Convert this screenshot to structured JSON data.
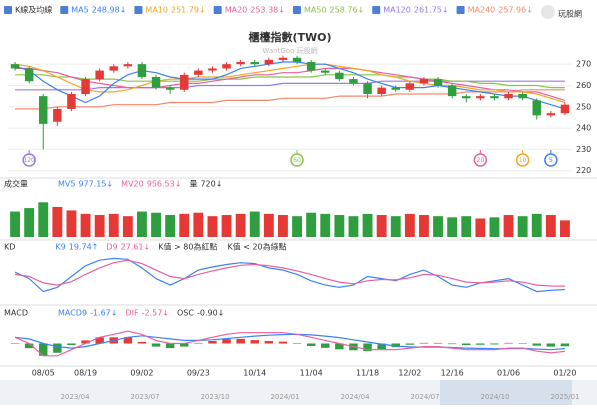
{
  "logo": "玩股網",
  "navigator": {
    "labels": [
      "2023/04",
      "2023/07",
      "2023/10",
      "2024/01",
      "2024/04",
      "2024/07",
      "2024/10",
      "2025/01"
    ]
  },
  "chart_data": [
    {
      "type": "candlestick",
      "title": "櫃檯指數(TWO)",
      "watermark": "WantGoo 玩股網",
      "legend_title": "K線及均線",
      "categories": [
        null,
        null,
        "08/05",
        null,
        null,
        "08/19",
        null,
        null,
        null,
        "09/02",
        null,
        null,
        null,
        "09/23",
        null,
        null,
        null,
        "10/14",
        null,
        null,
        null,
        "11/04",
        null,
        null,
        null,
        "11/18",
        null,
        null,
        "12/02",
        null,
        null,
        "12/16",
        null,
        null,
        null,
        "01/06",
        null,
        null,
        null,
        "01/20"
      ],
      "open": [
        270,
        268,
        255,
        243,
        249,
        256,
        263,
        267,
        269,
        270,
        264,
        259,
        258,
        265,
        267,
        268,
        270,
        271,
        270,
        272,
        273,
        271,
        267,
        266,
        263,
        261,
        256,
        259,
        258,
        261,
        263,
        260,
        255,
        254,
        255,
        254,
        256,
        253,
        246,
        247
      ],
      "high": [
        271,
        269,
        256,
        250,
        257,
        264,
        268,
        270,
        271,
        271,
        265,
        260,
        266,
        268,
        269,
        271,
        272,
        272,
        273,
        274,
        274,
        272,
        268,
        267,
        264,
        262,
        260,
        260,
        262,
        264,
        264,
        261,
        256,
        256,
        256,
        257,
        257,
        254,
        248,
        252
      ],
      "low": [
        267,
        261,
        230,
        241,
        248,
        255,
        262,
        266,
        268,
        263,
        258,
        256,
        257,
        264,
        266,
        267,
        269,
        269,
        269,
        271,
        270,
        266,
        265,
        262,
        260,
        254,
        255,
        257,
        257,
        260,
        259,
        254,
        252,
        253,
        253,
        253,
        253,
        244,
        245,
        246
      ],
      "close": [
        268,
        262,
        242,
        249,
        256,
        263,
        267,
        269,
        270,
        264,
        259,
        258,
        265,
        267,
        268,
        270,
        271,
        270,
        272,
        273,
        271,
        267,
        266,
        263,
        261,
        256,
        259,
        258,
        261,
        263,
        260,
        255,
        254,
        255,
        254,
        256,
        254,
        246,
        247,
        251
      ],
      "up_color": "#e53935",
      "down_color": "#2e9e3e",
      "series": [
        {
          "name": "MA5",
          "color": "#3b82f6",
          "last": 248.98,
          "trend": "↓",
          "values": [
            269,
            267,
            262,
            258,
            255,
            252,
            255,
            261,
            265,
            267,
            266,
            264,
            263,
            263,
            263,
            265,
            268,
            269,
            270,
            271,
            271,
            270,
            270,
            268,
            266,
            263,
            261,
            259,
            259,
            259,
            260,
            259,
            258,
            257,
            256,
            255,
            255,
            253,
            251,
            249
          ]
        },
        {
          "name": "MA10",
          "color": "#f5a623",
          "last": 251.79,
          "trend": "↓",
          "values": [
            270,
            269,
            267,
            264,
            261,
            258,
            257,
            257,
            258,
            260,
            262,
            263,
            263,
            264,
            264,
            264,
            265,
            266,
            267,
            268,
            269,
            270,
            270,
            269,
            268,
            267,
            265,
            264,
            262,
            261,
            260,
            260,
            259,
            258,
            258,
            257,
            257,
            256,
            254,
            252
          ]
        },
        {
          "name": "MA20",
          "color": "#e8609e",
          "last": 253.38,
          "trend": "↓",
          "values": [
            268,
            268,
            267,
            266,
            264,
            262,
            261,
            260,
            259,
            259,
            259,
            260,
            261,
            261,
            262,
            263,
            264,
            265,
            265,
            266,
            266,
            267,
            268,
            268,
            268,
            267,
            266,
            265,
            264,
            263,
            262,
            261,
            260,
            259,
            258,
            258,
            257,
            257,
            255,
            253
          ]
        },
        {
          "name": "MA50",
          "color": "#8bc34a",
          "last": 258.76,
          "trend": "↓",
          "values": [
            265,
            265,
            265,
            264,
            264,
            263,
            263,
            263,
            262,
            262,
            262,
            262,
            262,
            262,
            263,
            263,
            263,
            264,
            264,
            264,
            264,
            264,
            265,
            265,
            265,
            265,
            265,
            264,
            264,
            263,
            263,
            262,
            262,
            261,
            261,
            260,
            260,
            260,
            259,
            259
          ]
        },
        {
          "name": "MA120",
          "color": "#9b7be8",
          "last": 261.75,
          "trend": "↓",
          "values": [
            258,
            258,
            258,
            258,
            258,
            258,
            259,
            259,
            259,
            259,
            259,
            259,
            259,
            260,
            260,
            260,
            260,
            260,
            260,
            261,
            261,
            261,
            261,
            261,
            261,
            261,
            262,
            262,
            262,
            262,
            262,
            262,
            262,
            262,
            262,
            262,
            262,
            262,
            262,
            262
          ]
        },
        {
          "name": "MA240",
          "color": "#f08a6c",
          "last": 257.96,
          "trend": "↓",
          "values": [
            249,
            249,
            249,
            250,
            250,
            250,
            250,
            251,
            251,
            251,
            251,
            252,
            252,
            252,
            252,
            253,
            253,
            253,
            253,
            254,
            254,
            254,
            254,
            255,
            255,
            255,
            255,
            256,
            256,
            256,
            256,
            256,
            257,
            257,
            257,
            257,
            258,
            258,
            258,
            258
          ]
        }
      ],
      "markers": [
        null,
        {
          "label": "120",
          "color": "#9b7be8"
        },
        null,
        null,
        null,
        null,
        null,
        null,
        null,
        null,
        null,
        null,
        null,
        null,
        null,
        null,
        null,
        null,
        null,
        null,
        {
          "label": "60",
          "color": "#8bc34a"
        },
        null,
        null,
        null,
        null,
        null,
        null,
        null,
        null,
        null,
        null,
        null,
        null,
        {
          "label": "20",
          "color": "#e8609e"
        },
        null,
        null,
        {
          "label": "10",
          "color": "#f5a623"
        },
        null,
        {
          "label": "5",
          "color": "#3b82f6"
        },
        null
      ],
      "ylim": [
        218,
        279
      ],
      "yticks": [
        220,
        230,
        240,
        250,
        260,
        270
      ],
      "grid": true
    },
    {
      "type": "bar",
      "legend_title": "成交量",
      "values": [
        1100,
        1250,
        1500,
        1300,
        1150,
        1000,
        950,
        1000,
        900,
        1100,
        1050,
        950,
        1000,
        1050,
        900,
        950,
        1000,
        1100,
        1000,
        950,
        900,
        1050,
        1000,
        950,
        900,
        1000,
        950,
        900,
        1000,
        950,
        900,
        850,
        900,
        800,
        850,
        950,
        900,
        1000,
        950,
        720
      ],
      "stats": [
        {
          "name": "MV5",
          "color": "#3b82f6",
          "last": 977.15,
          "trend": "↓"
        },
        {
          "name": "MV20",
          "color": "#e8609e",
          "last": 956.53,
          "trend": "↓"
        },
        {
          "name": "量",
          "color": "#333333",
          "last": 720,
          "trend": "↓"
        }
      ],
      "ylim": [
        0,
        1600
      ]
    },
    {
      "type": "line",
      "legend_title": "KD",
      "notes": [
        "K值 > 80為紅點",
        "K值 < 20為綠點"
      ],
      "series": [
        {
          "name": "K9",
          "color": "#3b82f6",
          "last": 19.74,
          "trend": "↑",
          "values": [
            60,
            45,
            15,
            25,
            50,
            75,
            88,
            92,
            90,
            70,
            45,
            30,
            45,
            65,
            72,
            78,
            82,
            80,
            70,
            65,
            55,
            40,
            30,
            25,
            30,
            50,
            45,
            40,
            55,
            65,
            50,
            30,
            25,
            35,
            40,
            45,
            30,
            15,
            18,
            19.74
          ]
        },
        {
          "name": "D9",
          "color": "#e8609e",
          "last": 27.61,
          "trend": "↓",
          "values": [
            55,
            50,
            35,
            30,
            38,
            55,
            70,
            82,
            88,
            80,
            65,
            50,
            45,
            55,
            63,
            70,
            76,
            78,
            75,
            70,
            63,
            55,
            45,
            37,
            33,
            40,
            43,
            42,
            47,
            55,
            53,
            45,
            37,
            35,
            37,
            40,
            37,
            30,
            28,
            27.61
          ]
        }
      ],
      "ylim": [
        0,
        100
      ]
    },
    {
      "type": "macd",
      "legend_title": "MACD",
      "series": [
        {
          "name": "MACD9",
          "color": "#3b82f6",
          "last": -1.67,
          "trend": "↓",
          "values": [
            2,
            1.5,
            0,
            -1,
            -1.5,
            -1,
            0,
            1,
            2,
            2.5,
            2,
            1.5,
            1,
            1,
            1.2,
            1.6,
            2,
            2.4,
            2.7,
            2.9,
            3,
            2.8,
            2.4,
            1.9,
            1.2,
            0.5,
            -0.2,
            -0.8,
            -1.1,
            -1.2,
            -1.2,
            -1.3,
            -1.5,
            -1.6,
            -1.7,
            -1.7,
            -1.6,
            -1.8,
            -2,
            -1.67
          ]
        },
        {
          "name": "DIF",
          "color": "#e8609e",
          "last": -2.57,
          "trend": "↓",
          "values": [
            2,
            0,
            -4,
            -4,
            -2,
            0,
            2,
            3,
            4,
            3,
            1,
            0,
            0,
            1,
            2,
            3,
            3.5,
            3.5,
            3.5,
            3.5,
            3,
            2,
            1,
            0,
            -1,
            -2,
            -2,
            -2,
            -1.5,
            -1,
            -1,
            -1.5,
            -2,
            -2,
            -2,
            -1.5,
            -1.5,
            -2.5,
            -3,
            -2.57
          ]
        }
      ],
      "osc": {
        "name": "OSC",
        "color": "#333333",
        "last": {
          "value": -0.9,
          "label": "-0.90"
        },
        "trend": "↓",
        "up_color": "#e53935",
        "down_color": "#2e9e3e",
        "values": [
          0,
          -1.5,
          -4,
          -3,
          -0.5,
          1,
          2,
          2,
          2,
          0.5,
          -1,
          -1.5,
          -1,
          0,
          0.8,
          1.4,
          1.5,
          1.1,
          0.8,
          0.6,
          0,
          -0.8,
          -1.4,
          -1.9,
          -2.2,
          -2.5,
          -1.8,
          -1.2,
          -0.4,
          0.2,
          0.2,
          -0.2,
          -0.5,
          -0.4,
          -0.3,
          0.2,
          0.1,
          -0.7,
          -1,
          -0.9
        ]
      },
      "ylim": [
        -6,
        6
      ]
    }
  ]
}
